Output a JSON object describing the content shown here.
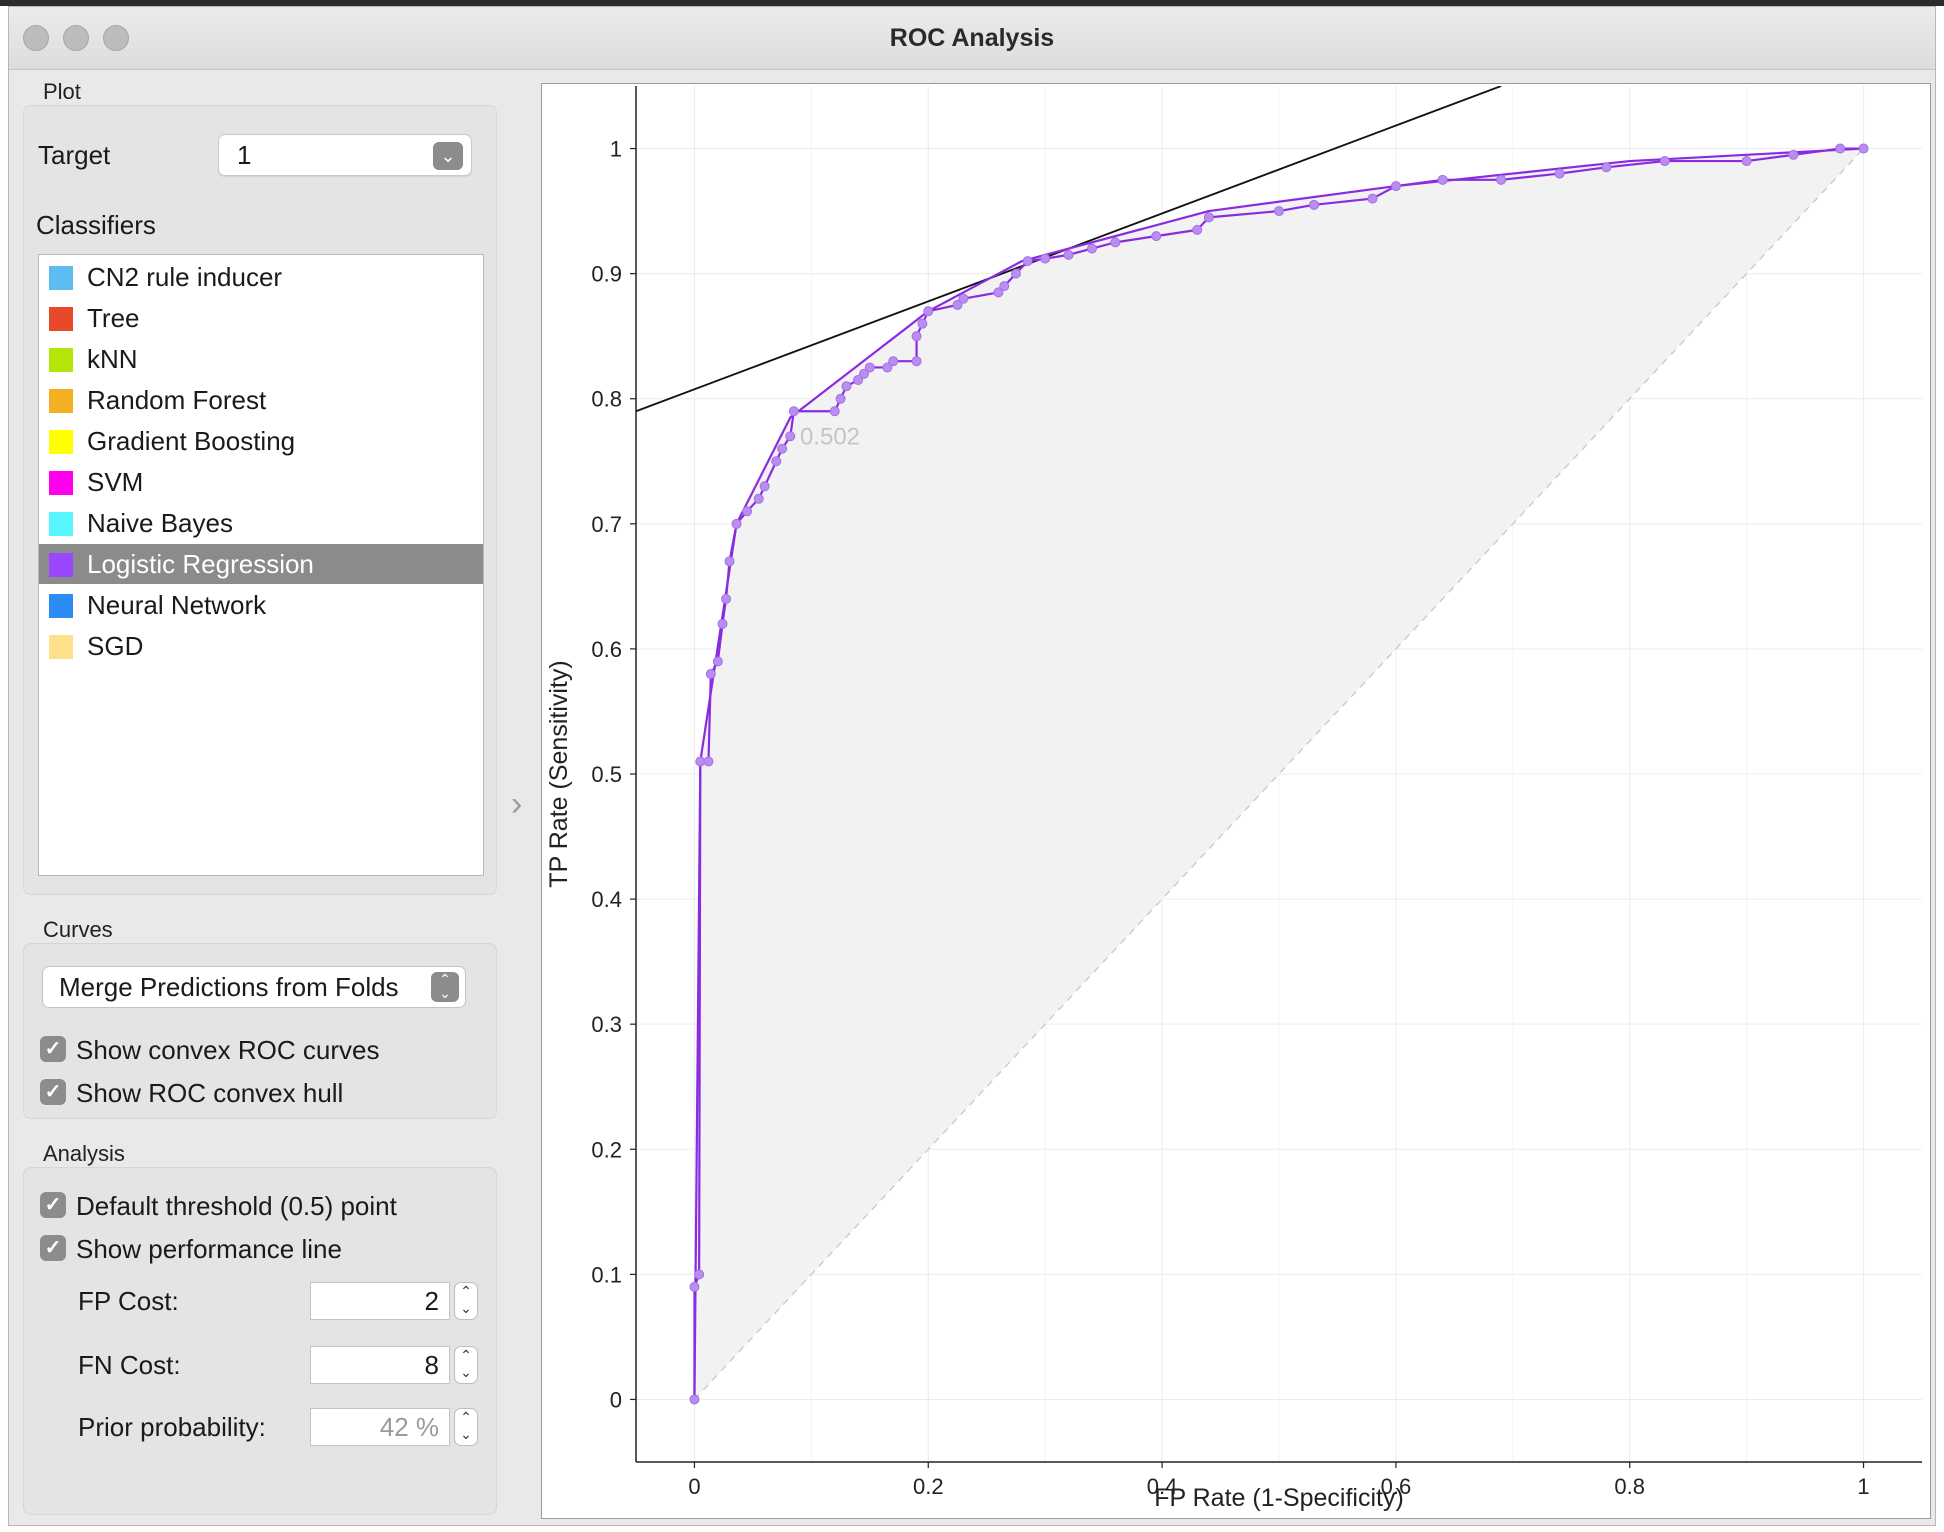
{
  "window": {
    "title": "ROC Analysis"
  },
  "sidebar": {
    "plot": {
      "section_label": "Plot",
      "target_label": "Target",
      "target_value": "1",
      "classifiers_label": "Classifiers",
      "classifiers": [
        {
          "label": "CN2 rule inducer",
          "color": "#5fbcf2"
        },
        {
          "label": "Tree",
          "color": "#e9492b"
        },
        {
          "label": "kNN",
          "color": "#b5e60a"
        },
        {
          "label": "Random Forest",
          "color": "#f3b022"
        },
        {
          "label": "Gradient Boosting",
          "color": "#ffff00"
        },
        {
          "label": "SVM",
          "color": "#ff00ef"
        },
        {
          "label": "Naive Bayes",
          "color": "#57f5ff"
        },
        {
          "label": "Logistic Regression",
          "color": "#9c47ff",
          "selected": true
        },
        {
          "label": "Neural Network",
          "color": "#2d8cf4"
        },
        {
          "label": "SGD",
          "color": "#ffe08a"
        }
      ]
    },
    "curves": {
      "section_label": "Curves",
      "merge_option": "Merge Predictions from Folds",
      "show_convex_curves": "Show convex ROC curves",
      "show_convex_hull": "Show ROC convex hull"
    },
    "analysis": {
      "section_label": "Analysis",
      "default_threshold": "Default threshold (0.5) point",
      "show_performance_line": "Show performance line",
      "fp_cost_label": "FP Cost:",
      "fp_cost_value": "2",
      "fn_cost_label": "FN Cost:",
      "fn_cost_value": "8",
      "prior_label": "Prior probability:",
      "prior_value": "42 %"
    }
  },
  "chart_data": {
    "type": "line",
    "xlabel": "FP Rate (1-Specificity)",
    "ylabel": "TP Rate (Sensitivity)",
    "xlim": [
      -0.05,
      1.05
    ],
    "ylim": [
      -0.05,
      1.05
    ],
    "xticks": [
      "0",
      "0.2",
      "0.4",
      "0.6",
      "0.8",
      "1"
    ],
    "yticks": [
      "0",
      "0.1",
      "0.2",
      "0.3",
      "0.4",
      "0.5",
      "0.6",
      "0.7",
      "0.8",
      "0.9",
      "1"
    ],
    "grid": true,
    "threshold_label": "0.502",
    "threshold_point": {
      "x": 0.08,
      "y": 0.77
    },
    "series": [
      {
        "color": "#8a2be2",
        "points": [
          [
            0,
            0
          ],
          [
            0,
            0.09
          ],
          [
            0.004,
            0.1
          ],
          [
            0.005,
            0.51
          ],
          [
            0.012,
            0.51
          ],
          [
            0.014,
            0.58
          ],
          [
            0.02,
            0.59
          ],
          [
            0.024,
            0.62
          ],
          [
            0.027,
            0.64
          ],
          [
            0.03,
            0.67
          ],
          [
            0.036,
            0.7
          ],
          [
            0.045,
            0.71
          ],
          [
            0.055,
            0.72
          ],
          [
            0.06,
            0.73
          ],
          [
            0.07,
            0.75
          ],
          [
            0.075,
            0.76
          ],
          [
            0.082,
            0.77
          ],
          [
            0.085,
            0.79
          ],
          [
            0.12,
            0.79
          ],
          [
            0.125,
            0.8
          ],
          [
            0.13,
            0.81
          ],
          [
            0.14,
            0.815
          ],
          [
            0.145,
            0.82
          ],
          [
            0.15,
            0.825
          ],
          [
            0.165,
            0.825
          ],
          [
            0.17,
            0.83
          ],
          [
            0.19,
            0.83
          ],
          [
            0.19,
            0.85
          ],
          [
            0.195,
            0.86
          ],
          [
            0.2,
            0.87
          ],
          [
            0.225,
            0.875
          ],
          [
            0.23,
            0.88
          ],
          [
            0.26,
            0.885
          ],
          [
            0.265,
            0.89
          ],
          [
            0.275,
            0.9
          ],
          [
            0.285,
            0.91
          ],
          [
            0.3,
            0.912
          ],
          [
            0.32,
            0.915
          ],
          [
            0.34,
            0.92
          ],
          [
            0.36,
            0.925
          ],
          [
            0.395,
            0.93
          ],
          [
            0.43,
            0.935
          ],
          [
            0.44,
            0.945
          ],
          [
            0.5,
            0.95
          ],
          [
            0.53,
            0.955
          ],
          [
            0.58,
            0.96
          ],
          [
            0.6,
            0.97
          ],
          [
            0.64,
            0.975
          ],
          [
            0.69,
            0.975
          ],
          [
            0.74,
            0.98
          ],
          [
            0.78,
            0.985
          ],
          [
            0.83,
            0.99
          ],
          [
            0.9,
            0.99
          ],
          [
            0.94,
            0.995
          ],
          [
            0.98,
            1
          ],
          [
            1,
            1
          ]
        ]
      },
      {
        "color": "#8a2be2",
        "convex_hull": true,
        "points": [
          [
            0,
            0
          ],
          [
            0.005,
            0.51
          ],
          [
            0.036,
            0.7
          ],
          [
            0.082,
            0.785
          ],
          [
            0.2,
            0.87
          ],
          [
            0.28,
            0.91
          ],
          [
            0.44,
            0.95
          ],
          [
            0.6,
            0.97
          ],
          [
            0.8,
            0.99
          ],
          [
            1,
            1
          ]
        ]
      }
    ],
    "performance_line": [
      [
        -0.05,
        0.79
      ],
      [
        0.69,
        1.05
      ]
    ],
    "diagonal": [
      [
        0,
        0
      ],
      [
        1,
        1
      ]
    ]
  }
}
